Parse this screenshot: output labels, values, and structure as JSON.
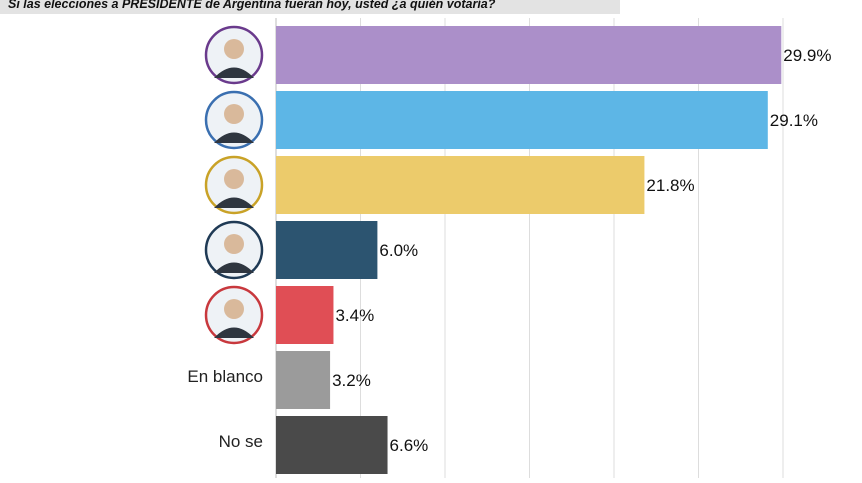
{
  "header": {
    "title": "Si las elecciones a PRESIDENTE de Argentina fueran hoy, usted ¿a quién votaría?"
  },
  "chart_data": {
    "type": "bar",
    "orientation": "horizontal",
    "title": "Si las elecciones a PRESIDENTE de Argentina fueran hoy, usted ¿a quién votaría?",
    "xlim": [
      0,
      30
    ],
    "grid": true,
    "categories": [
      {
        "label": "",
        "avatar": "candidate-1-avatar",
        "ring": "#6a3a8c"
      },
      {
        "label": "",
        "avatar": "candidate-2-avatar",
        "ring": "#3a6fb0"
      },
      {
        "label": "",
        "avatar": "candidate-3-avatar",
        "ring": "#c9a227"
      },
      {
        "label": "",
        "avatar": "candidate-4-avatar",
        "ring": "#1f3a55"
      },
      {
        "label": "",
        "avatar": "candidate-5-avatar",
        "ring": "#c8383d"
      },
      {
        "label": "En blanco",
        "avatar": ""
      },
      {
        "label": "No se",
        "avatar": ""
      }
    ],
    "values": [
      29.9,
      29.1,
      21.8,
      6.0,
      3.4,
      3.2,
      6.6
    ],
    "value_labels": [
      "29.9%",
      "29.1%",
      "21.8%",
      "6.0%",
      "3.4%",
      "3.2%",
      "6.6%"
    ],
    "colors": [
      "#ab8fc9",
      "#5db6e6",
      "#eccb6b",
      "#2c5470",
      "#e04e55",
      "#9b9b9b",
      "#4a4a4a"
    ]
  }
}
